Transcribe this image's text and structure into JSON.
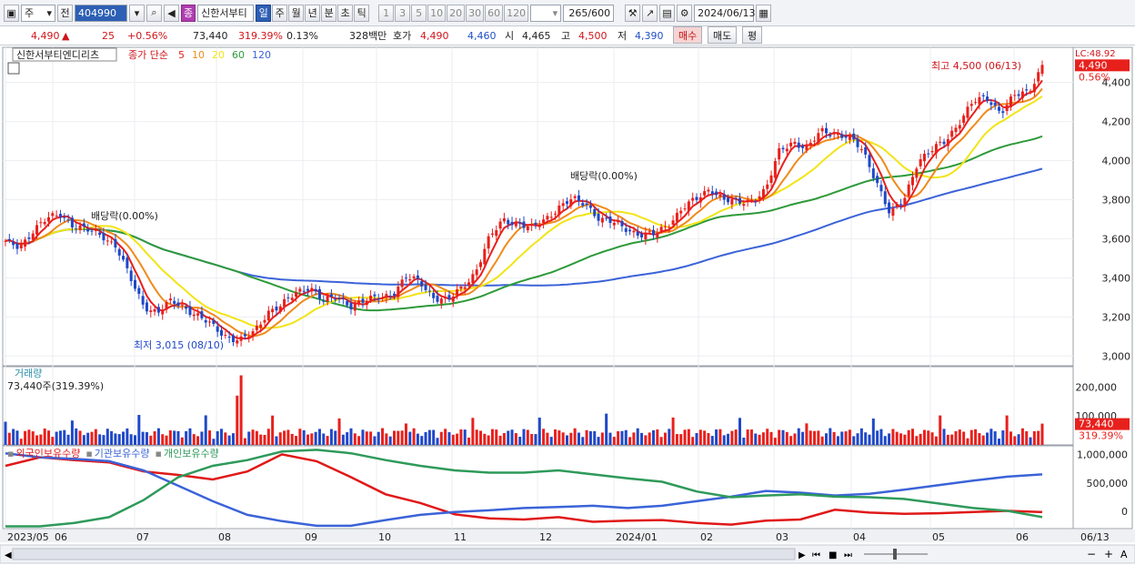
{
  "toolbar": {
    "period_unit": "주",
    "prev_label": "전",
    "code": "404990",
    "stock_name": "신한서부티",
    "name_badge": "종",
    "period_tabs": [
      "일",
      "주",
      "월",
      "년",
      "분",
      "초",
      "틱"
    ],
    "active_period": "일",
    "interval_tabs": [
      "1",
      "3",
      "5",
      "10",
      "20",
      "30",
      "60",
      "120"
    ],
    "count": "265",
    "count_total": "/600",
    "date": "2024/06/13"
  },
  "quote": {
    "price": "4,490",
    "arrow": "▲",
    "change": "25",
    "change_pct": "+0.56%",
    "volume": "73,440",
    "volume_ratio": "319.39%",
    "turnover": "0.13%",
    "amount": "328백만",
    "ask_label": "호가",
    "ask": "4,490",
    "bid": "4,460",
    "open_label": "시",
    "open": "4,465",
    "high_label": "고",
    "high": "4,500",
    "low_label": "저",
    "low": "4,390",
    "buy_label": "매수",
    "sell_label": "매도",
    "avg_label": "평"
  },
  "legend": {
    "title": "신한서부티엔디리츠",
    "ma_prefix": "종가 단순",
    "ma_periods": [
      "5",
      "10",
      "20",
      "60",
      "120"
    ],
    "volume_title": "거래량",
    "volume_value": "73,440주(319.39%)",
    "holdings": [
      "외국인보유수량",
      "기관보유수량",
      "개인보유수량"
    ]
  },
  "colors": {
    "up": "#e8201c",
    "down": "#1f48c8",
    "ma5": "#e8201c",
    "ma10": "#f08a1c",
    "ma20": "#f2e416",
    "ma60": "#2e9a3a",
    "ma120": "#3b63d8",
    "foreign": "#e01818",
    "institution": "#3b63d8",
    "individual": "#2e9a5a"
  },
  "chart_data": {
    "type": "candlestick",
    "x_ticks": [
      "2023/05",
      "06",
      "07",
      "08",
      "09",
      "10",
      "11",
      "12",
      "2024/01",
      "02",
      "03",
      "04",
      "05",
      "06"
    ],
    "right_x_label": "06/13",
    "price_axis": {
      "ticks": [
        "4,400",
        "4,200",
        "4,000",
        "3,800",
        "3,600",
        "3,400",
        "3,200",
        "3,000"
      ],
      "lc_label": "LC:48.92",
      "current_tag": "4,490",
      "current_pct": "0.56%",
      "ylim": [
        2950,
        4580
      ]
    },
    "volume_axis": {
      "ticks": [
        "200,000",
        "100,000"
      ],
      "current_tag": "73,440",
      "current_pct": "319.39%",
      "ylim": [
        0,
        270000
      ]
    },
    "holding_axis": {
      "ticks": [
        "1,000,000",
        "500,000",
        "0"
      ],
      "ylim": [
        -300000,
        1150000
      ]
    },
    "annotations": {
      "high": "최고 4,500 (06/13)",
      "low": "최저 3,015 (08/10)",
      "dividend_1": "배당락(0.00%)",
      "dividend_2": "배당락(0.00%)"
    },
    "close_keypoints": [
      3580,
      3560,
      3640,
      3700,
      3730,
      3660,
      3640,
      3620,
      3560,
      3400,
      3260,
      3220,
      3280,
      3250,
      3200,
      3150,
      3100,
      3080,
      3120,
      3230,
      3260,
      3320,
      3360,
      3280,
      3300,
      3260,
      3280,
      3300,
      3320,
      3400,
      3380,
      3300,
      3280,
      3350,
      3430,
      3600,
      3700,
      3680,
      3650,
      3700,
      3760,
      3800,
      3780,
      3700,
      3680,
      3650,
      3620,
      3620,
      3680,
      3760,
      3800,
      3860,
      3800,
      3780,
      3800,
      3850,
      4050,
      4100,
      4060,
      4150,
      4140,
      4120,
      4050,
      3900,
      3720,
      3800,
      4000,
      4050,
      4100,
      4200,
      4300,
      4320,
      4250,
      4330,
      4350,
      4490
    ],
    "volume_peak": 240000,
    "foreign_holding_keypoints": [
      800000,
      950000,
      900000,
      860000,
      700000,
      640000,
      560000,
      700000,
      1000000,
      880000,
      600000,
      300000,
      150000,
      -50000,
      -120000,
      -140000,
      -100000,
      -180000,
      -160000,
      -150000,
      -200000,
      -230000,
      -160000,
      -140000,
      30000,
      -20000,
      -40000,
      -30000,
      -10000,
      10000,
      -10000
    ],
    "institution_holding_keypoints": [
      1020000,
      950000,
      920000,
      880000,
      720000,
      450000,
      180000,
      -60000,
      -170000,
      -250000,
      -250000,
      -150000,
      -60000,
      -10000,
      20000,
      60000,
      80000,
      100000,
      60000,
      100000,
      180000,
      260000,
      360000,
      330000,
      280000,
      310000,
      380000,
      460000,
      540000,
      610000,
      650000
    ],
    "individual_holding_keypoints": [
      -260000,
      -260000,
      -200000,
      -100000,
      200000,
      600000,
      800000,
      900000,
      1050000,
      1080000,
      1020000,
      900000,
      800000,
      720000,
      680000,
      680000,
      720000,
      650000,
      580000,
      520000,
      350000,
      250000,
      280000,
      300000,
      260000,
      250000,
      220000,
      140000,
      60000,
      10000,
      -100000
    ]
  }
}
